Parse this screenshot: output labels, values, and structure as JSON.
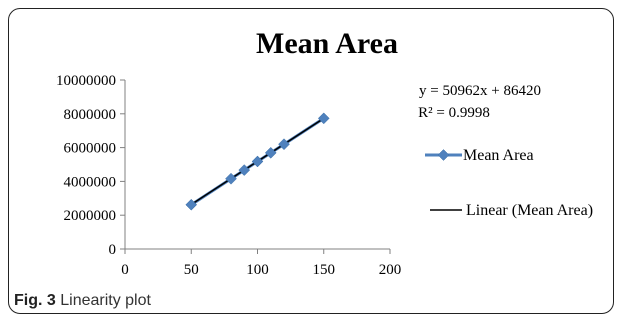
{
  "chart_data": {
    "type": "scatter",
    "title": "Mean Area",
    "xlim": [
      0,
      200
    ],
    "ylim": [
      0,
      10000000
    ],
    "x_ticks": [
      0,
      50,
      100,
      150,
      200
    ],
    "y_ticks": [
      0,
      2000000,
      4000000,
      6000000,
      8000000,
      10000000
    ],
    "x_tick_labels": [
      "0",
      "50",
      "100",
      "150",
      "200"
    ],
    "y_tick_labels": [
      "0",
      "2000000",
      "4000000",
      "6000000",
      "8000000",
      "10000000"
    ],
    "series": [
      {
        "name": "Mean Area",
        "x": [
          50,
          80,
          90,
          100,
          110,
          120,
          150
        ],
        "y": [
          2620000,
          4160000,
          4670000,
          5180000,
          5690000,
          6200000,
          7730000
        ],
        "color": "#4f81bd",
        "marker": "diamond"
      }
    ],
    "trendline": {
      "name": "Linear (Mean Area)",
      "slope": 50962,
      "intercept": 86420,
      "x_range": [
        50,
        150
      ],
      "color": "#000000"
    },
    "annotations": {
      "equation": "y = 50962x + 86420",
      "r_squared": "R² = 0.9998"
    },
    "legend_position": "right"
  },
  "caption": {
    "label": "Fig. 3",
    "text": "Linearity plot"
  }
}
